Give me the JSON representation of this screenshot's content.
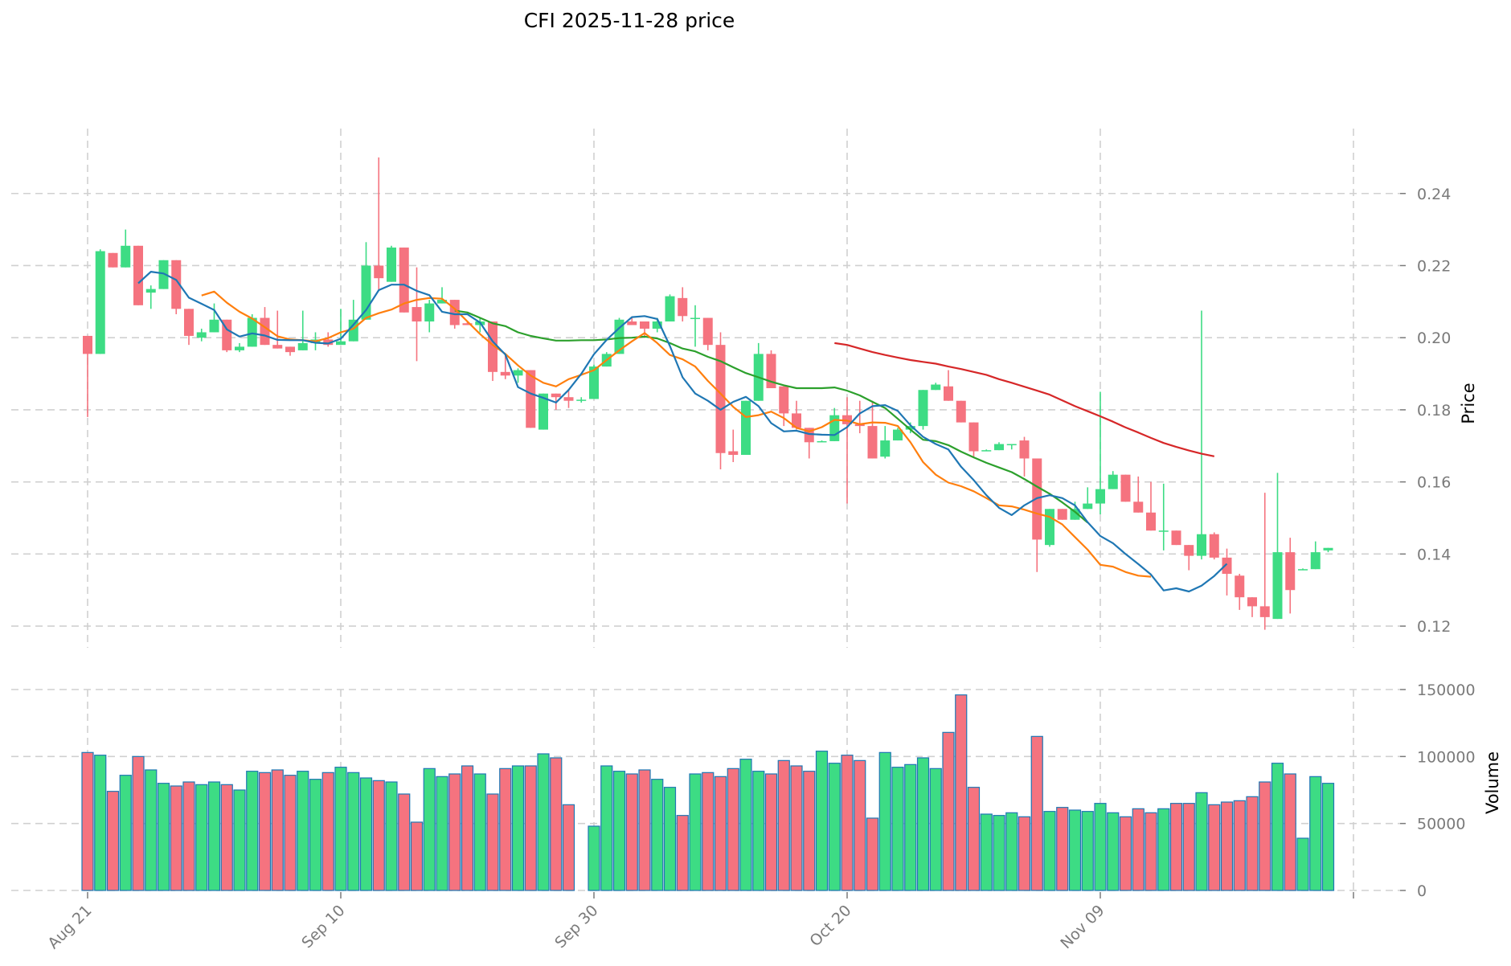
{
  "chart_data": {
    "type": "candlestick",
    "title": "CFI  2025-11-28  price",
    "price_axis": {
      "label": "Price",
      "ticks": [
        0.12,
        0.14,
        0.16,
        0.18,
        0.2,
        0.22,
        0.24
      ],
      "tick_labels": [
        "0.12",
        "0.14",
        "0.16",
        "0.18",
        "0.20",
        "0.22",
        "0.24"
      ],
      "ylim": [
        0.114,
        0.258
      ]
    },
    "volume_axis": {
      "label": "Volume",
      "ticks": [
        0,
        50000,
        100000,
        150000
      ],
      "tick_labels": [
        "0",
        "50000",
        "100000",
        "150000"
      ],
      "ylim": [
        0,
        150000
      ]
    },
    "x_ticks": [
      {
        "index": 0,
        "label": "Aug 21"
      },
      {
        "index": 20,
        "label": "Sep 10"
      },
      {
        "index": 40,
        "label": "Sep 30"
      },
      {
        "index": 60,
        "label": "Oct 20"
      },
      {
        "index": 80,
        "label": "Nov 09"
      },
      {
        "index": 100,
        "label": ""
      }
    ],
    "colors": {
      "up": "#3ddc84",
      "down": "#f5737f",
      "vol_edge": "#1f77b4",
      "ma_short": "#1f77b4",
      "ma_mid": "#ff7f0e",
      "ma_long": "#2ca02c",
      "ma_longest": "#d62728"
    },
    "candles": [
      [
        0.2005,
        0.2005,
        0.178,
        0.1955,
        103000
      ],
      [
        0.1955,
        0.2245,
        0.1955,
        0.224,
        101000
      ],
      [
        0.2235,
        0.2235,
        0.2195,
        0.2195,
        74000
      ],
      [
        0.2195,
        0.23,
        0.2195,
        0.2255,
        86000
      ],
      [
        0.2255,
        0.2255,
        0.209,
        0.209,
        100000
      ],
      [
        0.2125,
        0.2145,
        0.208,
        0.2135,
        90000
      ],
      [
        0.2135,
        0.2215,
        0.2135,
        0.2215,
        80000
      ],
      [
        0.2215,
        0.2215,
        0.2065,
        0.208,
        78000
      ],
      [
        0.208,
        0.208,
        0.198,
        0.2005,
        81000
      ],
      [
        0.2,
        0.2025,
        0.199,
        0.2015,
        79000
      ],
      [
        0.2015,
        0.2095,
        0.2015,
        0.205,
        81000
      ],
      [
        0.205,
        0.205,
        0.196,
        0.1965,
        79000
      ],
      [
        0.1965,
        0.1985,
        0.196,
        0.1975,
        75000
      ],
      [
        0.1975,
        0.2065,
        0.1975,
        0.2055,
        89000
      ],
      [
        0.2055,
        0.2085,
        0.198,
        0.198,
        88000
      ],
      [
        0.198,
        0.2075,
        0.197,
        0.197,
        90000
      ],
      [
        0.1975,
        0.1975,
        0.195,
        0.196,
        86000
      ],
      [
        0.1965,
        0.2075,
        0.1965,
        0.1985,
        89000
      ],
      [
        0.1985,
        0.2015,
        0.1965,
        0.1995,
        83000
      ],
      [
        0.1995,
        0.2015,
        0.1975,
        0.198,
        88000
      ],
      [
        0.198,
        0.208,
        0.198,
        0.199,
        92000
      ],
      [
        0.199,
        0.2105,
        0.199,
        0.205,
        88000
      ],
      [
        0.205,
        0.2265,
        0.205,
        0.22,
        84000
      ],
      [
        0.22,
        0.25,
        0.213,
        0.2165,
        82000
      ],
      [
        0.2155,
        0.2255,
        0.2155,
        0.225,
        81000
      ],
      [
        0.225,
        0.225,
        0.207,
        0.207,
        72000
      ],
      [
        0.2085,
        0.2195,
        0.1935,
        0.2045,
        51000
      ],
      [
        0.2045,
        0.2105,
        0.2015,
        0.2095,
        91000
      ],
      [
        0.2095,
        0.214,
        0.2095,
        0.2105,
        85000
      ],
      [
        0.2105,
        0.2105,
        0.2025,
        0.2035,
        87000
      ],
      [
        0.204,
        0.2045,
        0.2035,
        0.2035,
        93000
      ],
      [
        0.2035,
        0.2055,
        0.2015,
        0.2045,
        87000
      ],
      [
        0.2045,
        0.2045,
        0.188,
        0.1905,
        72000
      ],
      [
        0.1905,
        0.1955,
        0.1885,
        0.1895,
        91000
      ],
      [
        0.1895,
        0.1915,
        0.1875,
        0.191,
        93000
      ],
      [
        0.191,
        0.191,
        0.175,
        0.175,
        93000
      ],
      [
        0.1745,
        0.1845,
        0.1745,
        0.1845,
        102000
      ],
      [
        0.1845,
        0.1845,
        0.18,
        0.1835,
        99000
      ],
      [
        0.1835,
        0.1855,
        0.1805,
        0.1825,
        64000
      ],
      [
        0.1825,
        0.1835,
        0.182,
        0.1828,
        0
      ],
      [
        0.183,
        0.1925,
        0.183,
        0.192,
        48000
      ],
      [
        0.192,
        0.196,
        0.192,
        0.1955,
        93000
      ],
      [
        0.1955,
        0.2055,
        0.1955,
        0.205,
        89000
      ],
      [
        0.2045,
        0.2055,
        0.2035,
        0.2035,
        87000
      ],
      [
        0.2045,
        0.2045,
        0.2005,
        0.2025,
        90000
      ],
      [
        0.2025,
        0.2055,
        0.2015,
        0.2045,
        83000
      ],
      [
        0.2045,
        0.212,
        0.2045,
        0.2115,
        77000
      ],
      [
        0.211,
        0.214,
        0.2045,
        0.206,
        56000
      ],
      [
        0.2055,
        0.209,
        0.1975,
        0.2055,
        87000
      ],
      [
        0.2055,
        0.2055,
        0.1965,
        0.198,
        88000
      ],
      [
        0.198,
        0.2015,
        0.1635,
        0.168,
        85000
      ],
      [
        0.1685,
        0.1745,
        0.1655,
        0.1675,
        91000
      ],
      [
        0.1675,
        0.1825,
        0.1675,
        0.1825,
        98000
      ],
      [
        0.1825,
        0.1985,
        0.1825,
        0.1955,
        89000
      ],
      [
        0.1955,
        0.1965,
        0.186,
        0.186,
        87000
      ],
      [
        0.1865,
        0.1865,
        0.1755,
        0.179,
        97000
      ],
      [
        0.179,
        0.1825,
        0.1745,
        0.175,
        93000
      ],
      [
        0.175,
        0.175,
        0.1665,
        0.171,
        89000
      ],
      [
        0.1712,
        0.1715,
        0.1712,
        0.1713,
        104000
      ],
      [
        0.1713,
        0.1805,
        0.1713,
        0.1785,
        95000
      ],
      [
        0.1785,
        0.1835,
        0.154,
        0.176,
        101000
      ],
      [
        0.176,
        0.1825,
        0.1735,
        0.1755,
        97000
      ],
      [
        0.1755,
        0.1825,
        0.1665,
        0.1665,
        54000
      ],
      [
        0.167,
        0.1755,
        0.1665,
        0.1715,
        103000
      ],
      [
        0.1715,
        0.175,
        0.1715,
        0.1745,
        92000
      ],
      [
        0.1745,
        0.1765,
        0.1735,
        0.1755,
        94000
      ],
      [
        0.1755,
        0.1855,
        0.1745,
        0.1855,
        99000
      ],
      [
        0.1855,
        0.1875,
        0.1855,
        0.187,
        91000
      ],
      [
        0.1865,
        0.191,
        0.1825,
        0.1825,
        118000
      ],
      [
        0.1825,
        0.1825,
        0.1765,
        0.1765,
        146000
      ],
      [
        0.1765,
        0.1765,
        0.167,
        0.1685,
        77000
      ],
      [
        0.1685,
        0.169,
        0.1685,
        0.1688,
        57000
      ],
      [
        0.1688,
        0.171,
        0.1688,
        0.1705,
        56000
      ],
      [
        0.1705,
        0.1705,
        0.169,
        0.1705,
        58000
      ],
      [
        0.1715,
        0.1725,
        0.1615,
        0.1665,
        55000
      ],
      [
        0.1665,
        0.1665,
        0.135,
        0.144,
        115000
      ],
      [
        0.1425,
        0.1525,
        0.142,
        0.1525,
        59000
      ],
      [
        0.1525,
        0.1525,
        0.1495,
        0.1495,
        62000
      ],
      [
        0.1495,
        0.1545,
        0.1495,
        0.1525,
        60000
      ],
      [
        0.1525,
        0.1585,
        0.1525,
        0.154,
        59000
      ],
      [
        0.154,
        0.185,
        0.151,
        0.158,
        65000
      ],
      [
        0.158,
        0.163,
        0.158,
        0.162,
        58000
      ],
      [
        0.162,
        0.162,
        0.1545,
        0.1545,
        55000
      ],
      [
        0.1545,
        0.1615,
        0.1515,
        0.1515,
        61000
      ],
      [
        0.1515,
        0.16,
        0.1465,
        0.1465,
        58000
      ],
      [
        0.1465,
        0.1595,
        0.141,
        0.1465,
        61000
      ],
      [
        0.1465,
        0.1465,
        0.1425,
        0.1425,
        65000
      ],
      [
        0.1425,
        0.1425,
        0.1355,
        0.1395,
        65000
      ],
      [
        0.1395,
        0.2075,
        0.1385,
        0.1455,
        73000
      ],
      [
        0.1455,
        0.146,
        0.1385,
        0.139,
        64000
      ],
      [
        0.139,
        0.1415,
        0.1285,
        0.1345,
        66000
      ],
      [
        0.134,
        0.1345,
        0.1245,
        0.128,
        67000
      ],
      [
        0.128,
        0.128,
        0.1225,
        0.1255,
        70000
      ],
      [
        0.1255,
        0.157,
        0.119,
        0.1225,
        81000
      ],
      [
        0.122,
        0.1625,
        0.122,
        0.1405,
        95000
      ],
      [
        0.1405,
        0.1445,
        0.1235,
        0.13,
        87000
      ],
      [
        0.1355,
        0.136,
        0.1355,
        0.1358,
        39000
      ],
      [
        0.1358,
        0.1435,
        0.1358,
        0.1405,
        85000
      ],
      [
        0.141,
        0.1417,
        0.1405,
        0.1417,
        80000
      ]
    ],
    "ma_short_start": 4,
    "ma_short": [
      0.2151,
      0.2183,
      0.2178,
      0.216,
      0.2111,
      0.2094,
      0.2077,
      0.2023,
      0.2003,
      0.2012,
      0.2006,
      0.1994,
      0.1993,
      0.1993,
      0.1986,
      0.1984,
      0.1997,
      0.2036,
      0.2077,
      0.2132,
      0.2147,
      0.2147,
      0.213,
      0.2118,
      0.2072,
      0.2065,
      0.2065,
      0.2042,
      0.199,
      0.1953,
      0.1863,
      0.1845,
      0.1833,
      0.182,
      0.1855,
      0.19,
      0.1954,
      0.1994,
      0.2027,
      0.2057,
      0.206,
      0.2052,
      0.1977,
      0.189,
      0.1845,
      0.1825,
      0.18,
      0.1822,
      0.1836,
      0.181,
      0.1763,
      0.174,
      0.1742,
      0.1733,
      0.1731,
      0.173,
      0.1752,
      0.179,
      0.181,
      0.1813,
      0.1797,
      0.1757,
      0.1725,
      0.1705,
      0.169,
      0.1642,
      0.1605,
      0.1563,
      0.1528,
      0.1508,
      0.1535,
      0.1555,
      0.1563,
      0.1555,
      0.1535,
      0.1488,
      0.145,
      0.143,
      0.14,
      0.1372,
      0.1343,
      0.1299,
      0.1305,
      0.1296,
      0.1312,
      0.1339,
      0.1373
    ],
    "ma_mid_start": 9,
    "ma_mid": [
      0.2117,
      0.2128,
      0.2097,
      0.2072,
      0.2053,
      0.2029,
      0.2004,
      0.1995,
      0.1993,
      0.199,
      0.1999,
      0.2015,
      0.2025,
      0.2055,
      0.2068,
      0.2078,
      0.2095,
      0.2105,
      0.211,
      0.2108,
      0.208,
      0.2045,
      0.201,
      0.198,
      0.1955,
      0.1923,
      0.1895,
      0.1875,
      0.1865,
      0.1885,
      0.1897,
      0.191,
      0.1938,
      0.1965,
      0.199,
      0.2013,
      0.1985,
      0.1952,
      0.194,
      0.192,
      0.188,
      0.1845,
      0.1808,
      0.178,
      0.1785,
      0.1795,
      0.1777,
      0.175,
      0.174,
      0.1752,
      0.1772,
      0.177,
      0.176,
      0.1765,
      0.1764,
      0.1755,
      0.171,
      0.1655,
      0.162,
      0.1598,
      0.1588,
      0.1574,
      0.1555,
      0.1535,
      0.1532,
      0.1523,
      0.1512,
      0.1503,
      0.1482,
      0.1447,
      0.1412,
      0.137,
      0.1365,
      0.135,
      0.134,
      0.1337
    ],
    "ma_long_start": 29,
    "ma_long": [
      0.2075,
      0.207,
      0.2055,
      0.204,
      0.2032,
      0.2015,
      0.2005,
      0.1998,
      0.1992,
      0.1992,
      0.1993,
      0.1993,
      0.1995,
      0.1999,
      0.2,
      0.2003,
      0.1998,
      0.1985,
      0.197,
      0.1962,
      0.1947,
      0.1935,
      0.1918,
      0.1902,
      0.189,
      0.1878,
      0.1868,
      0.186,
      0.186,
      0.186,
      0.1862,
      0.1853,
      0.184,
      0.1822,
      0.1805,
      0.1775,
      0.1745,
      0.1717,
      0.1713,
      0.1702,
      0.1684,
      0.1668,
      0.1653,
      0.164,
      0.1627,
      0.1608,
      0.1587,
      0.1567,
      0.1543,
      0.1517,
      0.1487
    ],
    "ma_longest_start": 59,
    "ma_longest": [
      0.1985,
      0.198,
      0.197,
      0.196,
      0.1952,
      0.1945,
      0.1938,
      0.1933,
      0.1928,
      0.192,
      0.1913,
      0.1905,
      0.1897,
      0.1885,
      0.1875,
      0.1864,
      0.1853,
      0.1842,
      0.1826,
      0.181,
      0.1796,
      0.1782,
      0.1767,
      0.1751,
      0.1737,
      0.1722,
      0.1708,
      0.1697,
      0.1687,
      0.1678,
      0.1671
    ]
  }
}
